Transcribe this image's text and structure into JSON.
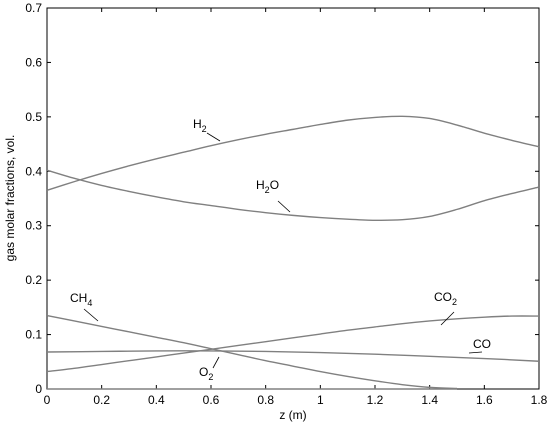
{
  "chart_data": {
    "type": "line",
    "title": "",
    "xlabel": "z (m)",
    "ylabel": "gas molar fractions, vol.",
    "xlim": [
      0,
      1.8
    ],
    "ylim": [
      0,
      0.7
    ],
    "xticks": [
      0,
      0.2,
      0.4,
      0.6,
      0.8,
      1,
      1.2,
      1.4,
      1.6,
      1.8
    ],
    "xtick_labels": [
      "0",
      "0.2",
      "0.4",
      "0.6",
      "0.8",
      "1",
      "1.2",
      "1.4",
      "1.6",
      "1.8"
    ],
    "yticks": [
      0,
      0.1,
      0.2,
      0.3,
      0.4,
      0.5,
      0.6,
      0.7
    ],
    "ytick_labels": [
      "0",
      "0.1",
      "0.2",
      "0.3",
      "0.4",
      "0.5",
      "0.6",
      "0.7"
    ],
    "grid": false,
    "line_color": "#808080",
    "series": [
      {
        "name": "H2",
        "label_main": "H",
        "label_sub": "2",
        "x": [
          0,
          0.1,
          0.2,
          0.3,
          0.4,
          0.5,
          0.6,
          0.7,
          0.8,
          0.9,
          1.0,
          1.1,
          1.2,
          1.3,
          1.4,
          1.5,
          1.6,
          1.7,
          1.8
        ],
        "y": [
          0.365,
          0.381,
          0.396,
          0.41,
          0.423,
          0.435,
          0.447,
          0.458,
          0.468,
          0.477,
          0.486,
          0.494,
          0.499,
          0.501,
          0.497,
          0.485,
          0.47,
          0.457,
          0.445
        ]
      },
      {
        "name": "H2O",
        "label_main": "H",
        "label_sub": "2",
        "label_tail": "O",
        "x": [
          0,
          0.1,
          0.2,
          0.3,
          0.4,
          0.5,
          0.6,
          0.7,
          0.8,
          0.9,
          1.0,
          1.1,
          1.2,
          1.3,
          1.4,
          1.5,
          1.6,
          1.7,
          1.8
        ],
        "y": [
          0.402,
          0.387,
          0.374,
          0.363,
          0.353,
          0.344,
          0.337,
          0.33,
          0.324,
          0.319,
          0.315,
          0.312,
          0.31,
          0.311,
          0.317,
          0.33,
          0.346,
          0.359,
          0.371
        ]
      },
      {
        "name": "CH4",
        "label_main": "CH",
        "label_sub": "4",
        "x": [
          0,
          0.1,
          0.2,
          0.3,
          0.4,
          0.5,
          0.6,
          0.7,
          0.8,
          0.9,
          1.0,
          1.1,
          1.2,
          1.3,
          1.4,
          1.5
        ],
        "y": [
          0.135,
          0.125,
          0.115,
          0.105,
          0.095,
          0.085,
          0.074,
          0.063,
          0.052,
          0.042,
          0.032,
          0.023,
          0.015,
          0.008,
          0.003,
          0.001
        ]
      },
      {
        "name": "CO2",
        "label_main": "CO",
        "label_sub": "2",
        "x": [
          0,
          0.1,
          0.2,
          0.3,
          0.4,
          0.5,
          0.6,
          0.7,
          0.8,
          0.9,
          1.0,
          1.1,
          1.2,
          1.3,
          1.4,
          1.5,
          1.6,
          1.7,
          1.8
        ],
        "y": [
          0.032,
          0.038,
          0.045,
          0.052,
          0.059,
          0.066,
          0.073,
          0.08,
          0.087,
          0.094,
          0.101,
          0.108,
          0.114,
          0.12,
          0.125,
          0.129,
          0.132,
          0.134,
          0.134
        ]
      },
      {
        "name": "CO",
        "label_main": "CO",
        "label_sub": "",
        "x": [
          0,
          0.2,
          0.4,
          0.6,
          0.8,
          1.0,
          1.2,
          1.4,
          1.6,
          1.8
        ],
        "y": [
          0.068,
          0.069,
          0.07,
          0.07,
          0.069,
          0.067,
          0.064,
          0.06,
          0.056,
          0.051
        ]
      },
      {
        "name": "O2",
        "label_main": "O",
        "label_sub": "2",
        "x": [
          0,
          1.5
        ],
        "y": [
          0,
          0
        ]
      }
    ]
  }
}
